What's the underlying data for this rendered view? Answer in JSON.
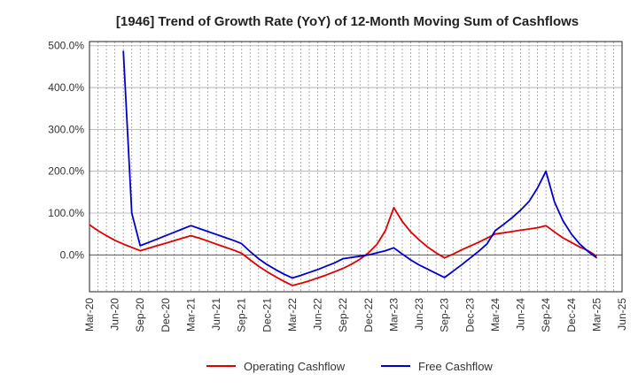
{
  "chart_data": {
    "type": "line",
    "title": "[1946]  Trend of Growth Rate (YoY) of 12-Month Moving Sum of Cashflows",
    "xlabel": "",
    "ylabel": "",
    "x_tick_labels": [
      "Mar-20",
      "Jun-20",
      "Sep-20",
      "Dec-20",
      "Mar-21",
      "Jun-21",
      "Sep-21",
      "Dec-21",
      "Mar-22",
      "Jun-22",
      "Sep-22",
      "Dec-22",
      "Mar-23",
      "Jun-23",
      "Sep-23",
      "Dec-23",
      "Mar-24",
      "Jun-24",
      "Sep-24",
      "Dec-24",
      "Mar-25",
      "Jun-25"
    ],
    "y_ticks": [
      0,
      100,
      200,
      300,
      400,
      500
    ],
    "y_tick_labels": [
      "0.0%",
      "100.0%",
      "200.0%",
      "300.0%",
      "400.0%",
      "500.0%"
    ],
    "ylim": [
      -88,
      510
    ],
    "x_range_months": [
      0,
      63
    ],
    "grid": "vertical dashed monthly, horizontal solid",
    "legend_position": "bottom-center",
    "colors": {
      "operating": "#e00000",
      "free": "#0000cc"
    },
    "series": [
      {
        "name": "Operating Cashflow",
        "color": "#e00000",
        "points": [
          {
            "x": "Mar-20",
            "y": 72
          },
          {
            "x": "Apr-20",
            "y": 58
          },
          {
            "x": "May-20",
            "y": 46
          },
          {
            "x": "Jun-20",
            "y": 35
          },
          {
            "x": "Jul-20",
            "y": 26
          },
          {
            "x": "Aug-20",
            "y": 18
          },
          {
            "x": "Sep-20",
            "y": 10
          },
          {
            "x": "Oct-20",
            "y": 16
          },
          {
            "x": "Nov-20",
            "y": 22
          },
          {
            "x": "Dec-20",
            "y": 28
          },
          {
            "x": "Jan-21",
            "y": 34
          },
          {
            "x": "Feb-21",
            "y": 40
          },
          {
            "x": "Mar-21",
            "y": 46
          },
          {
            "x": "Apr-21",
            "y": 40
          },
          {
            "x": "May-21",
            "y": 33
          },
          {
            "x": "Jun-21",
            "y": 26
          },
          {
            "x": "Jul-21",
            "y": 19
          },
          {
            "x": "Aug-21",
            "y": 12
          },
          {
            "x": "Sep-21",
            "y": 4
          },
          {
            "x": "Oct-21",
            "y": -12
          },
          {
            "x": "Nov-21",
            "y": -27
          },
          {
            "x": "Dec-21",
            "y": -40
          },
          {
            "x": "Jan-22",
            "y": -52
          },
          {
            "x": "Feb-22",
            "y": -63
          },
          {
            "x": "Mar-22",
            "y": -73
          },
          {
            "x": "Apr-22",
            "y": -68
          },
          {
            "x": "May-22",
            "y": -62
          },
          {
            "x": "Jun-22",
            "y": -55
          },
          {
            "x": "Jul-22",
            "y": -48
          },
          {
            "x": "Aug-22",
            "y": -40
          },
          {
            "x": "Sep-22",
            "y": -32
          },
          {
            "x": "Oct-22",
            "y": -22
          },
          {
            "x": "Nov-22",
            "y": -10
          },
          {
            "x": "Dec-22",
            "y": 5
          },
          {
            "x": "Jan-23",
            "y": 25
          },
          {
            "x": "Feb-23",
            "y": 58
          },
          {
            "x": "Mar-23",
            "y": 113
          },
          {
            "x": "Apr-23",
            "y": 80
          },
          {
            "x": "May-23",
            "y": 55
          },
          {
            "x": "Jun-23",
            "y": 36
          },
          {
            "x": "Jul-23",
            "y": 19
          },
          {
            "x": "Aug-23",
            "y": 5
          },
          {
            "x": "Sep-23",
            "y": -7
          },
          {
            "x": "Oct-23",
            "y": 2
          },
          {
            "x": "Nov-23",
            "y": 12
          },
          {
            "x": "Dec-23",
            "y": 21
          },
          {
            "x": "Jan-24",
            "y": 30
          },
          {
            "x": "Feb-24",
            "y": 40
          },
          {
            "x": "Mar-24",
            "y": 50
          },
          {
            "x": "Apr-24",
            "y": 53
          },
          {
            "x": "May-24",
            "y": 56
          },
          {
            "x": "Jun-24",
            "y": 59
          },
          {
            "x": "Jul-24",
            "y": 62
          },
          {
            "x": "Aug-24",
            "y": 65
          },
          {
            "x": "Sep-24",
            "y": 70
          },
          {
            "x": "Oct-24",
            "y": 55
          },
          {
            "x": "Nov-24",
            "y": 41
          },
          {
            "x": "Dec-24",
            "y": 30
          },
          {
            "x": "Jan-25",
            "y": 19
          },
          {
            "x": "Feb-25",
            "y": 10
          },
          {
            "x": "Mar-25",
            "y": -3
          }
        ]
      },
      {
        "name": "Free Cashflow",
        "color": "#0000cc",
        "points": [
          {
            "x": "Jul-20",
            "y": 488
          },
          {
            "x": "Aug-20",
            "y": 100
          },
          {
            "x": "Sep-20",
            "y": 22
          },
          {
            "x": "Oct-20",
            "y": 30
          },
          {
            "x": "Nov-20",
            "y": 38
          },
          {
            "x": "Dec-20",
            "y": 46
          },
          {
            "x": "Jan-21",
            "y": 54
          },
          {
            "x": "Feb-21",
            "y": 62
          },
          {
            "x": "Mar-21",
            "y": 70
          },
          {
            "x": "Apr-21",
            "y": 63
          },
          {
            "x": "May-21",
            "y": 56
          },
          {
            "x": "Jun-21",
            "y": 49
          },
          {
            "x": "Jul-21",
            "y": 42
          },
          {
            "x": "Aug-21",
            "y": 35
          },
          {
            "x": "Sep-21",
            "y": 27
          },
          {
            "x": "Oct-21",
            "y": 8
          },
          {
            "x": "Nov-21",
            "y": -9
          },
          {
            "x": "Dec-21",
            "y": -23
          },
          {
            "x": "Jan-22",
            "y": -35
          },
          {
            "x": "Feb-22",
            "y": -46
          },
          {
            "x": "Mar-22",
            "y": -55
          },
          {
            "x": "Apr-22",
            "y": -49
          },
          {
            "x": "May-22",
            "y": -42
          },
          {
            "x": "Jun-22",
            "y": -35
          },
          {
            "x": "Jul-22",
            "y": -27
          },
          {
            "x": "Aug-22",
            "y": -19
          },
          {
            "x": "Sep-22",
            "y": -9
          },
          {
            "x": "Oct-22",
            "y": -6
          },
          {
            "x": "Nov-22",
            "y": -3
          },
          {
            "x": "Dec-22",
            "y": 0
          },
          {
            "x": "Jan-23",
            "y": 5
          },
          {
            "x": "Feb-23",
            "y": 10
          },
          {
            "x": "Mar-23",
            "y": 17
          },
          {
            "x": "Apr-23",
            "y": 2
          },
          {
            "x": "May-23",
            "y": -12
          },
          {
            "x": "Jun-23",
            "y": -24
          },
          {
            "x": "Jul-23",
            "y": -34
          },
          {
            "x": "Aug-23",
            "y": -44
          },
          {
            "x": "Sep-23",
            "y": -54
          },
          {
            "x": "Oct-23",
            "y": -39
          },
          {
            "x": "Nov-23",
            "y": -24
          },
          {
            "x": "Dec-23",
            "y": -8
          },
          {
            "x": "Jan-24",
            "y": 8
          },
          {
            "x": "Feb-24",
            "y": 26
          },
          {
            "x": "Mar-24",
            "y": 58
          },
          {
            "x": "Apr-24",
            "y": 73
          },
          {
            "x": "May-24",
            "y": 89
          },
          {
            "x": "Jun-24",
            "y": 107
          },
          {
            "x": "Jul-24",
            "y": 128
          },
          {
            "x": "Aug-24",
            "y": 160
          },
          {
            "x": "Sep-24",
            "y": 200
          },
          {
            "x": "Oct-24",
            "y": 127
          },
          {
            "x": "Nov-24",
            "y": 82
          },
          {
            "x": "Dec-24",
            "y": 50
          },
          {
            "x": "Jan-25",
            "y": 26
          },
          {
            "x": "Feb-25",
            "y": 8
          },
          {
            "x": "Mar-25",
            "y": -7
          }
        ]
      }
    ]
  }
}
